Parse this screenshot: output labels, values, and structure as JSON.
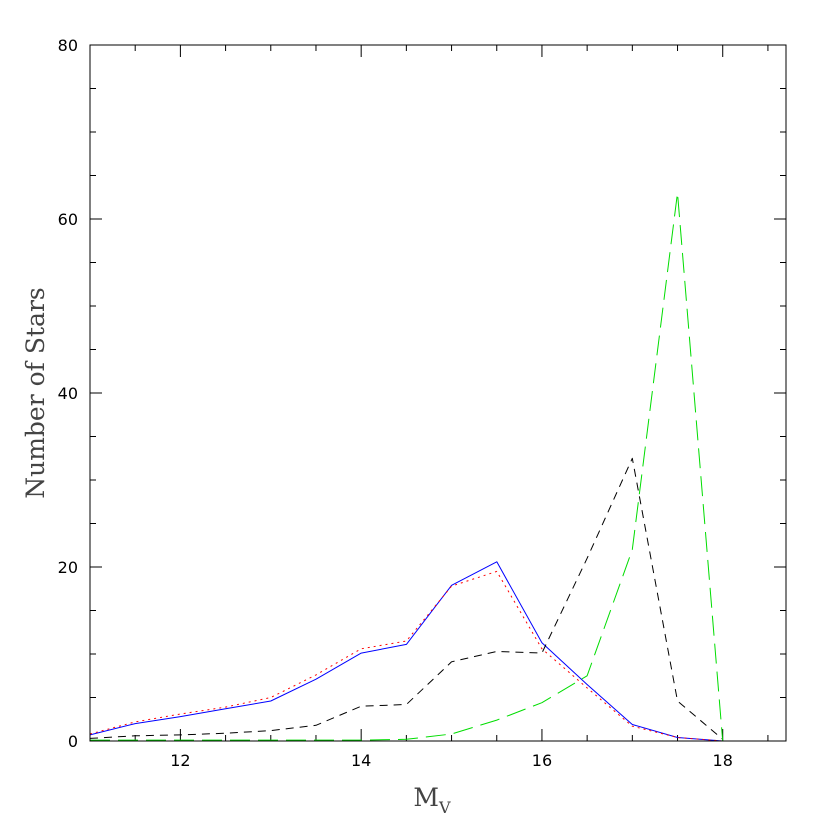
{
  "chart_data": {
    "type": "line",
    "title": "",
    "xlabel": {
      "main": "M",
      "sub": "V"
    },
    "ylabel": "Number of Stars",
    "xlim": [
      11,
      18.7
    ],
    "ylim": [
      0,
      80
    ],
    "x_ticks": [
      12,
      14,
      16,
      18
    ],
    "x_tick_labels": [
      "12",
      "14",
      "16",
      "18"
    ],
    "y_ticks": [
      0,
      20,
      40,
      60,
      80
    ],
    "y_tick_labels": [
      "0",
      "20",
      "40",
      "60",
      "80"
    ],
    "grid": false,
    "legend": "none",
    "series": [
      {
        "color": "#0000ff",
        "dash": "solid",
        "x": [
          11,
          11.5,
          12,
          12.5,
          13,
          13.5,
          14,
          14.5,
          15,
          15.5,
          16,
          16.5,
          17,
          17.5,
          18
        ],
        "y": [
          0.7,
          2.0,
          2.8,
          3.7,
          4.6,
          7.1,
          10.1,
          11.1,
          17.9,
          20.6,
          11.3,
          6.5,
          1.9,
          0.4,
          0.0
        ]
      },
      {
        "color": "#ff0000",
        "dash": "dotted",
        "x": [
          11,
          11.5,
          12,
          12.5,
          13,
          13.5,
          14,
          14.5,
          15,
          15.5,
          16,
          16.5,
          17,
          17.5,
          18
        ],
        "y": [
          0.8,
          2.2,
          3.1,
          3.9,
          5.0,
          7.6,
          10.6,
          11.5,
          17.8,
          19.5,
          10.6,
          6.1,
          1.7,
          0.4,
          0.0
        ]
      },
      {
        "color": "#000000",
        "dash": "short-dash",
        "x": [
          11,
          11.5,
          12,
          12.5,
          13,
          13.5,
          14,
          14.5,
          15,
          15.5,
          16,
          16.5,
          17,
          17.5,
          18
        ],
        "y": [
          0.3,
          0.6,
          0.7,
          0.9,
          1.2,
          1.8,
          4.0,
          4.2,
          9.1,
          10.3,
          10.1,
          21.0,
          32.5,
          4.6,
          0.2
        ]
      },
      {
        "color": "#00dd00",
        "dash": "long-dash",
        "x": [
          11,
          11.5,
          12,
          12.5,
          13,
          13.5,
          14,
          14.5,
          15,
          15.5,
          16,
          16.5,
          17,
          17.5,
          18
        ],
        "y": [
          0.1,
          0.1,
          0.1,
          0.1,
          0.1,
          0.1,
          0.1,
          0.2,
          0.8,
          2.4,
          4.4,
          7.5,
          22.0,
          63.0,
          0.0
        ]
      }
    ]
  }
}
